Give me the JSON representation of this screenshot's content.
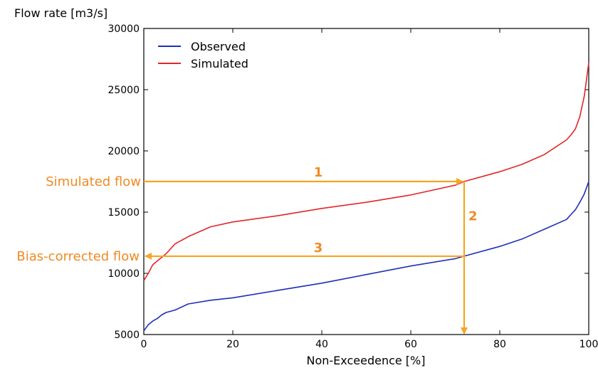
{
  "chart_data": {
    "type": "line",
    "xlabel": "Non-Exceedence [%]",
    "ylabel": "Flow rate [m3/s]",
    "xlim": [
      0,
      100
    ],
    "ylim": [
      5000,
      30000
    ],
    "xticks": [
      0,
      20,
      40,
      60,
      80,
      100
    ],
    "yticks": [
      5000,
      10000,
      15000,
      20000,
      25000,
      30000
    ],
    "grid": false,
    "legend_position": "top-left",
    "series": [
      {
        "name": "Observed",
        "color": "#1f2fb5",
        "x": [
          0,
          1,
          2,
          3,
          4,
          5,
          7,
          10,
          15,
          20,
          30,
          40,
          50,
          60,
          70,
          72,
          80,
          85,
          90,
          95,
          96,
          97,
          98,
          99,
          100
        ],
        "y": [
          5300,
          5800,
          6100,
          6300,
          6600,
          6800,
          7000,
          7500,
          7800,
          8000,
          8600,
          9200,
          9900,
          10600,
          11200,
          11400,
          12200,
          12800,
          13600,
          14400,
          14800,
          15200,
          15800,
          16500,
          17500
        ]
      },
      {
        "name": "Simulated",
        "color": "#e32626",
        "x": [
          0,
          1,
          2,
          3,
          4,
          5,
          7,
          10,
          15,
          20,
          30,
          40,
          50,
          60,
          70,
          72,
          80,
          85,
          90,
          95,
          96,
          97,
          98,
          99,
          100
        ],
        "y": [
          9400,
          10000,
          10700,
          11000,
          11300,
          11600,
          12400,
          13000,
          13800,
          14200,
          14700,
          15300,
          15800,
          16400,
          17200,
          17500,
          18300,
          18900,
          19700,
          20900,
          21300,
          21800,
          22800,
          24500,
          27200
        ]
      }
    ],
    "annotations": {
      "color": "#f5a623",
      "text_color": "#f08a24",
      "simulated_flow_label": "Simulated flow",
      "bias_corrected_label": "Bias-corrected flow",
      "step1": "1",
      "step2": "2",
      "step3": "3",
      "x_percent": 72,
      "simulated_value": 17500,
      "corrected_value": 11400
    }
  }
}
